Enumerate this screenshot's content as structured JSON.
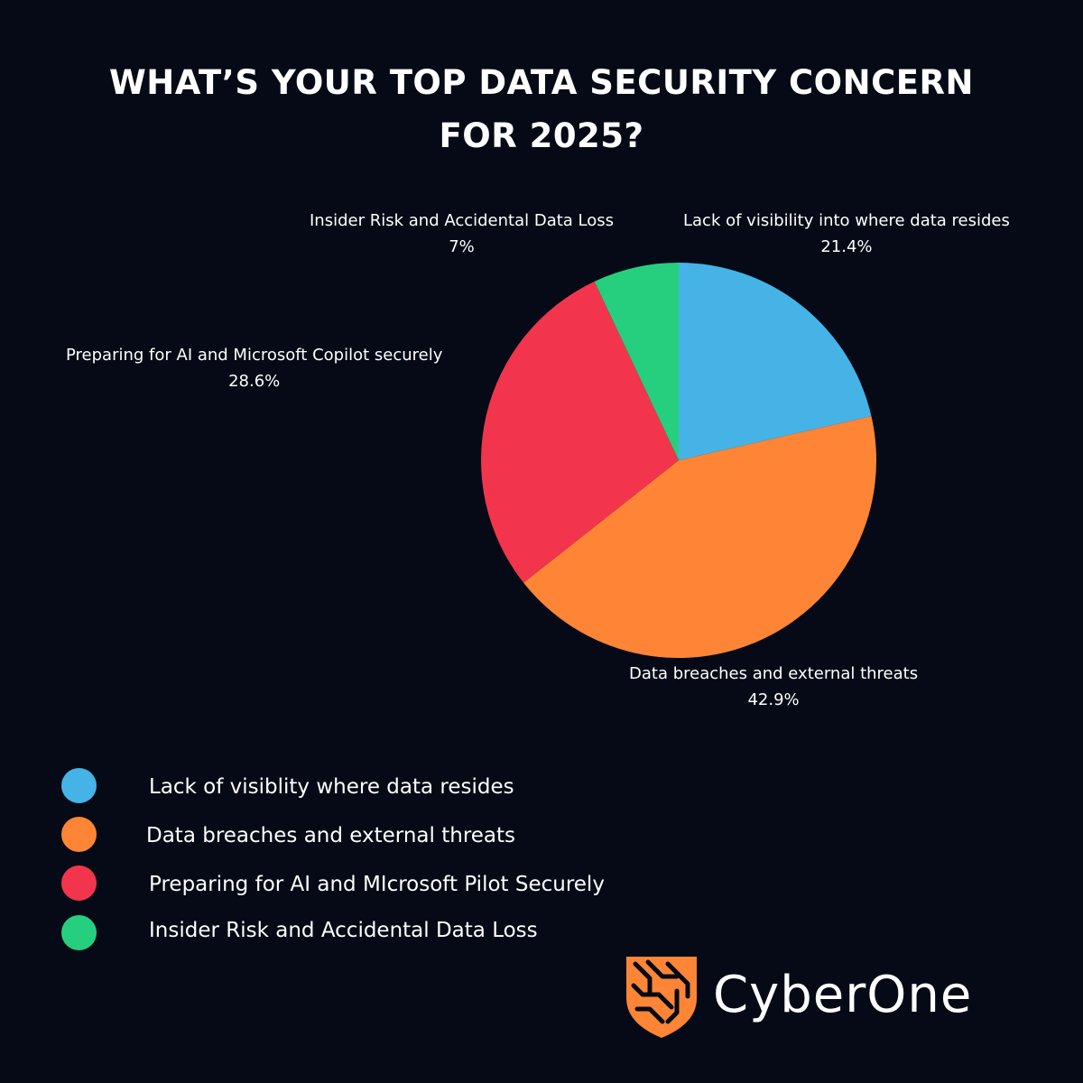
{
  "title": {
    "line1": "WHAT’S YOUR TOP DATA SECURITY CONCERN",
    "line2": "FOR 2025?"
  },
  "chart_data": {
    "type": "pie",
    "start_angle": "12 o'clock, clockwise",
    "slices": [
      {
        "label": "Lack of visibility into where data resides",
        "value": 21.4,
        "value_text": "21.4%",
        "color": "#45b3e6"
      },
      {
        "label": "Data breaches and external threats",
        "value": 42.9,
        "value_text": "42.9%",
        "color": "#fd8535"
      },
      {
        "label": "Preparing for AI and Microsoft Copilot securely",
        "value": 28.6,
        "value_text": "28.6%",
        "color": "#f2354c"
      },
      {
        "label": "Insider Risk and Accidental Data Loss",
        "value": 7,
        "value_text": "7%",
        "color": "#26cf7e"
      }
    ]
  },
  "legend": {
    "items": [
      {
        "label": "Lack of visiblity where data resides",
        "color": "#45b3e6"
      },
      {
        "label": "Data breaches and external threats",
        "color": "#fd8535"
      },
      {
        "label": "Preparing for AI and MIcrosoft Pilot Securely",
        "color": "#f2354c"
      },
      {
        "label": "Insider Risk and Accidental Data Loss",
        "color": "#26cf7e"
      }
    ]
  },
  "brand": {
    "name": "CyberOne",
    "accent_color": "#fd8535",
    "logo_icon": "shield-circuit-icon"
  }
}
